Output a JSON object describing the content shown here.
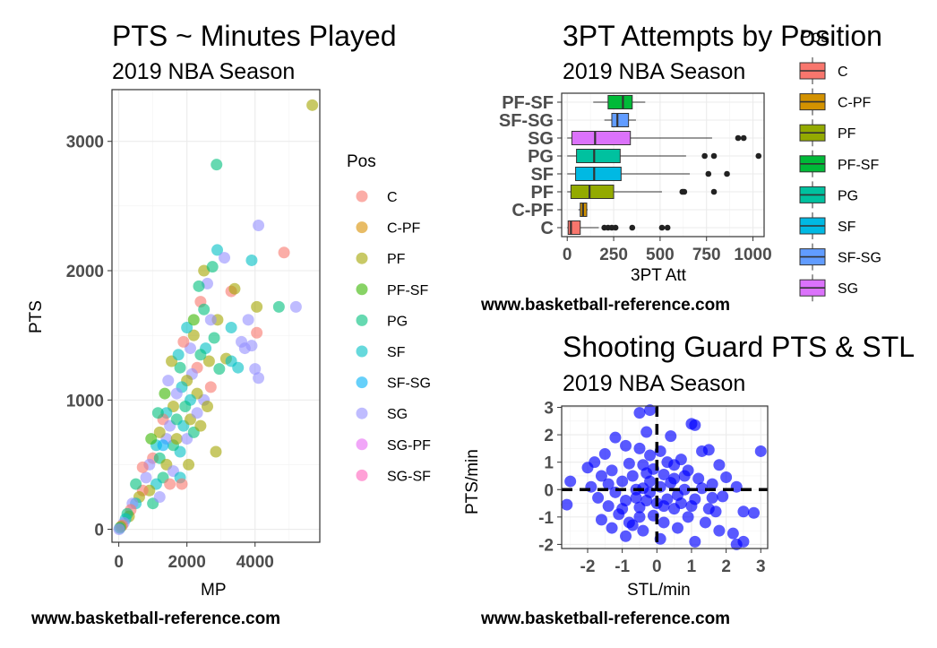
{
  "colors": {
    "pos": {
      "C": "#F8766D",
      "C-PF": "#D39200",
      "PF": "#93AA00",
      "PF-SF": "#00BA38",
      "PG": "#00C19F",
      "SF": "#00B9E3",
      "SF-SG": "#619CFF",
      "SG": "#DB72FB",
      "SG-PF": "#FF61C3",
      "SG-SF": "#FF61C3"
    },
    "scatter_pos": {
      "C": "#F8766D",
      "C-PF": "#D89000",
      "PF": "#A3A500",
      "PF-SF": "#39B600",
      "PG": "#00BF7D",
      "SF": "#00BFC4",
      "SF-SG": "#00B0F6",
      "SG": "#9590FF",
      "SG-PF": "#E76BF3",
      "SG-SF": "#FF62BC"
    },
    "guard_points": "#0000FF"
  },
  "plot1": {
    "title": "PTS ~ Minutes Played",
    "subtitle": "2019 NBA Season",
    "caption": "www.basketball-reference.com",
    "xlabel": "MP",
    "ylabel": "PTS",
    "legend_title": "Pos",
    "legend": [
      "C",
      "C-PF",
      "PF",
      "PF-SF",
      "PG",
      "SF",
      "SF-SG",
      "SG",
      "SG-PF",
      "SG-SF"
    ]
  },
  "plot2": {
    "title": "3PT Attempts by Position",
    "subtitle": "2019 NBA Season",
    "caption": "www.basketball-reference.com",
    "xlabel": "3PT Att",
    "legend_title": "Pos",
    "legend": [
      "C",
      "C-PF",
      "PF",
      "PF-SF",
      "PG",
      "SF",
      "SF-SG",
      "SG"
    ]
  },
  "plot3": {
    "title": "Shooting Guard PTS & STL",
    "subtitle": "2019 NBA Season",
    "caption": "www.basketball-reference.com",
    "xlabel": "STL/min",
    "ylabel": "PTS/min"
  },
  "chart_data": [
    {
      "type": "scatter",
      "title": "PTS ~ Minutes Played",
      "subtitle": "2019 NBA Season",
      "xlabel": "MP",
      "ylabel": "PTS",
      "xlim": [
        -200,
        5900
      ],
      "ylim": [
        -100,
        3400
      ],
      "xticks": [
        0,
        2000,
        4000
      ],
      "yticks": [
        0,
        1000,
        2000,
        3000
      ],
      "grid": true,
      "legend": "right",
      "legend_title": "Pos",
      "points": [
        {
          "x": 5680,
          "y": 3280,
          "pos": "PF"
        },
        {
          "x": 2870,
          "y": 2820,
          "pos": "PG"
        },
        {
          "x": 4100,
          "y": 2350,
          "pos": "SG"
        },
        {
          "x": 4850,
          "y": 2140,
          "pos": "C"
        },
        {
          "x": 2890,
          "y": 2160,
          "pos": "SF"
        },
        {
          "x": 3900,
          "y": 2080,
          "pos": "SF"
        },
        {
          "x": 2500,
          "y": 2000,
          "pos": "PF"
        },
        {
          "x": 2750,
          "y": 2030,
          "pos": "PG"
        },
        {
          "x": 3100,
          "y": 2100,
          "pos": "SG"
        },
        {
          "x": 3300,
          "y": 1840,
          "pos": "C"
        },
        {
          "x": 3400,
          "y": 1860,
          "pos": "PF"
        },
        {
          "x": 4700,
          "y": 1720,
          "pos": "PG"
        },
        {
          "x": 5200,
          "y": 1720,
          "pos": "SG"
        },
        {
          "x": 4050,
          "y": 1720,
          "pos": "PF"
        },
        {
          "x": 3800,
          "y": 1620,
          "pos": "SG"
        },
        {
          "x": 4050,
          "y": 1520,
          "pos": "C"
        },
        {
          "x": 2400,
          "y": 1760,
          "pos": "C"
        },
        {
          "x": 2600,
          "y": 1900,
          "pos": "SG"
        },
        {
          "x": 2350,
          "y": 1880,
          "pos": "PG"
        },
        {
          "x": 3600,
          "y": 1450,
          "pos": "SG"
        },
        {
          "x": 3300,
          "y": 1560,
          "pos": "SF"
        },
        {
          "x": 3900,
          "y": 1420,
          "pos": "SG"
        },
        {
          "x": 3700,
          "y": 1400,
          "pos": "SG"
        },
        {
          "x": 2900,
          "y": 1620,
          "pos": "PF"
        },
        {
          "x": 2800,
          "y": 1480,
          "pos": "PG"
        },
        {
          "x": 3150,
          "y": 1320,
          "pos": "PF"
        },
        {
          "x": 4000,
          "y": 1240,
          "pos": "SG"
        },
        {
          "x": 4100,
          "y": 1170,
          "pos": "SG"
        },
        {
          "x": 3500,
          "y": 1250,
          "pos": "SF"
        },
        {
          "x": 3300,
          "y": 1300,
          "pos": "SF"
        },
        {
          "x": 2950,
          "y": 1240,
          "pos": "PG"
        },
        {
          "x": 2200,
          "y": 1500,
          "pos": "PF"
        },
        {
          "x": 2100,
          "y": 1400,
          "pos": "SG"
        },
        {
          "x": 2000,
          "y": 1560,
          "pos": "SF"
        },
        {
          "x": 1900,
          "y": 1450,
          "pos": "C"
        },
        {
          "x": 2200,
          "y": 1620,
          "pos": "PF-SF"
        },
        {
          "x": 2500,
          "y": 1700,
          "pos": "PG"
        },
        {
          "x": 2700,
          "y": 1620,
          "pos": "SG"
        },
        {
          "x": 2650,
          "y": 1300,
          "pos": "PF"
        },
        {
          "x": 2550,
          "y": 1400,
          "pos": "SF"
        },
        {
          "x": 2400,
          "y": 1350,
          "pos": "PG"
        },
        {
          "x": 2300,
          "y": 1250,
          "pos": "C"
        },
        {
          "x": 2150,
          "y": 1200,
          "pos": "SG"
        },
        {
          "x": 2000,
          "y": 1150,
          "pos": "PF"
        },
        {
          "x": 1800,
          "y": 1250,
          "pos": "PG"
        },
        {
          "x": 1850,
          "y": 1100,
          "pos": "SF"
        },
        {
          "x": 2700,
          "y": 1100,
          "pos": "C"
        },
        {
          "x": 2500,
          "y": 1000,
          "pos": "SG"
        },
        {
          "x": 2300,
          "y": 1050,
          "pos": "PF"
        },
        {
          "x": 2100,
          "y": 1000,
          "pos": "SF"
        },
        {
          "x": 1950,
          "y": 950,
          "pos": "PG"
        },
        {
          "x": 1700,
          "y": 1050,
          "pos": "SG"
        },
        {
          "x": 1600,
          "y": 950,
          "pos": "PF"
        },
        {
          "x": 1400,
          "y": 900,
          "pos": "SF"
        },
        {
          "x": 1350,
          "y": 1050,
          "pos": "PF-SF"
        },
        {
          "x": 1300,
          "y": 850,
          "pos": "C"
        },
        {
          "x": 1500,
          "y": 800,
          "pos": "SG"
        },
        {
          "x": 1700,
          "y": 850,
          "pos": "PG"
        },
        {
          "x": 1900,
          "y": 800,
          "pos": "SF"
        },
        {
          "x": 2100,
          "y": 850,
          "pos": "PF"
        },
        {
          "x": 2300,
          "y": 900,
          "pos": "SG"
        },
        {
          "x": 2600,
          "y": 950,
          "pos": "PF"
        },
        {
          "x": 2850,
          "y": 600,
          "pos": "PF"
        },
        {
          "x": 2050,
          "y": 500,
          "pos": "PF"
        },
        {
          "x": 1800,
          "y": 600,
          "pos": "SF"
        },
        {
          "x": 1600,
          "y": 650,
          "pos": "PG"
        },
        {
          "x": 1400,
          "y": 700,
          "pos": "SG"
        },
        {
          "x": 1200,
          "y": 750,
          "pos": "PF"
        },
        {
          "x": 1100,
          "y": 650,
          "pos": "SF"
        },
        {
          "x": 1000,
          "y": 550,
          "pos": "C"
        },
        {
          "x": 900,
          "y": 500,
          "pos": "SG"
        },
        {
          "x": 1200,
          "y": 550,
          "pos": "PG"
        },
        {
          "x": 1400,
          "y": 500,
          "pos": "PF"
        },
        {
          "x": 1600,
          "y": 450,
          "pos": "SG"
        },
        {
          "x": 1800,
          "y": 400,
          "pos": "SF"
        },
        {
          "x": 1850,
          "y": 350,
          "pos": "C"
        },
        {
          "x": 1300,
          "y": 400,
          "pos": "PG"
        },
        {
          "x": 1100,
          "y": 350,
          "pos": "SF"
        },
        {
          "x": 900,
          "y": 300,
          "pos": "PF"
        },
        {
          "x": 800,
          "y": 400,
          "pos": "SG"
        },
        {
          "x": 700,
          "y": 300,
          "pos": "C"
        },
        {
          "x": 600,
          "y": 250,
          "pos": "PF"
        },
        {
          "x": 700,
          "y": 480,
          "pos": "C"
        },
        {
          "x": 500,
          "y": 350,
          "pos": "PG"
        },
        {
          "x": 500,
          "y": 200,
          "pos": "SF"
        },
        {
          "x": 400,
          "y": 200,
          "pos": "SG"
        },
        {
          "x": 350,
          "y": 150,
          "pos": "C"
        },
        {
          "x": 300,
          "y": 100,
          "pos": "PF"
        },
        {
          "x": 250,
          "y": 120,
          "pos": "PG"
        },
        {
          "x": 200,
          "y": 80,
          "pos": "SF"
        },
        {
          "x": 150,
          "y": 50,
          "pos": "SG"
        },
        {
          "x": 100,
          "y": 30,
          "pos": "C"
        },
        {
          "x": 60,
          "y": 20,
          "pos": "PF"
        },
        {
          "x": 30,
          "y": 10,
          "pos": "PG"
        },
        {
          "x": 10,
          "y": 0,
          "pos": "SG"
        },
        {
          "x": 1000,
          "y": 200,
          "pos": "PG"
        },
        {
          "x": 1200,
          "y": 250,
          "pos": "SG"
        },
        {
          "x": 1500,
          "y": 350,
          "pos": "C"
        },
        {
          "x": 950,
          "y": 700,
          "pos": "PF-SF"
        },
        {
          "x": 1150,
          "y": 900,
          "pos": "PG"
        },
        {
          "x": 1300,
          "y": 650,
          "pos": "SF-SG"
        },
        {
          "x": 1700,
          "y": 700,
          "pos": "PF"
        },
        {
          "x": 2000,
          "y": 700,
          "pos": "SG"
        },
        {
          "x": 2200,
          "y": 750,
          "pos": "PG"
        },
        {
          "x": 2400,
          "y": 800,
          "pos": "PF"
        },
        {
          "x": 1450,
          "y": 1150,
          "pos": "SG"
        },
        {
          "x": 1550,
          "y": 1300,
          "pos": "PF"
        },
        {
          "x": 1750,
          "y": 1350,
          "pos": "SF"
        }
      ]
    },
    {
      "type": "box",
      "title": "3PT Attempts by Position",
      "subtitle": "2019 NBA Season",
      "xlabel": "3PT Att",
      "xlim": [
        -30,
        1060
      ],
      "xticks": [
        0,
        250,
        500,
        750,
        1000
      ],
      "grid": true,
      "legend": "right",
      "legend_title": "Pos",
      "categories": [
        "C",
        "C-PF",
        "PF",
        "SF",
        "PG",
        "SG",
        "SF-SG",
        "PF-SF"
      ],
      "boxes": [
        {
          "pos": "C",
          "whisker_low": 0,
          "q1": 5,
          "median": 20,
          "q3": 70,
          "whisker_high": 170,
          "outliers": [
            200,
            220,
            240,
            260,
            350,
            510,
            540
          ]
        },
        {
          "pos": "C-PF",
          "whisker_low": 60,
          "q1": 70,
          "median": 85,
          "q3": 105,
          "whisker_high": 110,
          "outliers": []
        },
        {
          "pos": "PF",
          "whisker_low": 0,
          "q1": 20,
          "median": 120,
          "q3": 250,
          "whisker_high": 510,
          "outliers": [
            620,
            630,
            790
          ]
        },
        {
          "pos": "SF",
          "whisker_low": 0,
          "q1": 45,
          "median": 145,
          "q3": 290,
          "whisker_high": 660,
          "outliers": [
            760,
            860
          ]
        },
        {
          "pos": "PG",
          "whisker_low": 0,
          "q1": 50,
          "median": 145,
          "q3": 285,
          "whisker_high": 640,
          "outliers": [
            740,
            790,
            1030
          ]
        },
        {
          "pos": "SG",
          "whisker_low": 0,
          "q1": 25,
          "median": 150,
          "q3": 340,
          "whisker_high": 780,
          "outliers": [
            920,
            950
          ]
        },
        {
          "pos": "SF-SG",
          "whisker_low": 200,
          "q1": 240,
          "median": 270,
          "q3": 330,
          "whisker_high": 370,
          "outliers": []
        },
        {
          "pos": "PF-SF",
          "whisker_low": 140,
          "q1": 220,
          "median": 300,
          "q3": 350,
          "whisker_high": 420,
          "outliers": []
        }
      ]
    },
    {
      "type": "scatter",
      "title": "Shooting Guard PTS & STL",
      "subtitle": "2019 NBA Season",
      "xlabel": "STL/min",
      "ylabel": "PTS/min",
      "xlim": [
        -2.75,
        3.2
      ],
      "ylim": [
        -2.15,
        3.05
      ],
      "xticks": [
        -2,
        -1,
        0,
        1,
        2,
        3
      ],
      "yticks": [
        -2,
        -1,
        0,
        1,
        2,
        3
      ],
      "grid": true,
      "reference_lines": {
        "x": 0,
        "y": 0,
        "style": "dashed"
      },
      "points": [
        [
          -0.5,
          2.8
        ],
        [
          -0.2,
          2.9
        ],
        [
          1.0,
          2.4
        ],
        [
          1.1,
          2.35
        ],
        [
          -0.3,
          2.1
        ],
        [
          -1.2,
          1.9
        ],
        [
          0.4,
          1.95
        ],
        [
          -0.9,
          1.6
        ],
        [
          -0.5,
          1.5
        ],
        [
          0.1,
          1.4
        ],
        [
          1.3,
          1.4
        ],
        [
          1.5,
          1.45
        ],
        [
          3.0,
          1.4
        ],
        [
          -1.5,
          1.3
        ],
        [
          -0.2,
          1.25
        ],
        [
          0.7,
          1.1
        ],
        [
          -1.8,
          1.0
        ],
        [
          -0.8,
          0.95
        ],
        [
          0.5,
          0.9
        ],
        [
          1.8,
          0.9
        ],
        [
          -2.0,
          0.8
        ],
        [
          -1.3,
          0.7
        ],
        [
          -0.1,
          0.75
        ],
        [
          0.9,
          0.7
        ],
        [
          2.0,
          0.45
        ],
        [
          -1.6,
          0.5
        ],
        [
          -0.7,
          0.5
        ],
        [
          0.2,
          0.55
        ],
        [
          1.2,
          0.4
        ],
        [
          -2.5,
          0.3
        ],
        [
          -1.0,
          0.3
        ],
        [
          0.4,
          0.25
        ],
        [
          1.6,
          0.2
        ],
        [
          -1.9,
          0.1
        ],
        [
          -0.4,
          0.05
        ],
        [
          0.8,
          0.0
        ],
        [
          1.3,
          0.05
        ],
        [
          2.3,
          0.1
        ],
        [
          -1.2,
          -0.1
        ],
        [
          -0.2,
          -0.1
        ],
        [
          0.6,
          -0.2
        ],
        [
          1.9,
          -0.25
        ],
        [
          -1.7,
          -0.3
        ],
        [
          -0.6,
          -0.3
        ],
        [
          0.3,
          -0.35
        ],
        [
          1.1,
          -0.35
        ],
        [
          -2.6,
          -0.55
        ],
        [
          -1.4,
          -0.6
        ],
        [
          -0.5,
          -0.65
        ],
        [
          0.5,
          -0.7
        ],
        [
          1.5,
          -0.7
        ],
        [
          2.5,
          -0.8
        ],
        [
          2.8,
          -0.85
        ],
        [
          1.7,
          -0.8
        ],
        [
          -1.1,
          -0.9
        ],
        [
          -0.1,
          -0.95
        ],
        [
          0.9,
          -1.0
        ],
        [
          -1.6,
          -1.1
        ],
        [
          -0.8,
          -1.2
        ],
        [
          0.2,
          -1.2
        ],
        [
          1.4,
          -1.2
        ],
        [
          -1.3,
          -1.4
        ],
        [
          -0.4,
          -1.5
        ],
        [
          0.6,
          -1.4
        ],
        [
          1.8,
          -1.5
        ],
        [
          2.2,
          -1.6
        ],
        [
          -0.9,
          -1.7
        ],
        [
          0.1,
          -1.8
        ],
        [
          1.1,
          -1.9
        ],
        [
          2.3,
          -2.0
        ],
        [
          2.5,
          -1.9
        ],
        [
          -0.3,
          -0.4
        ],
        [
          0.0,
          -0.5
        ],
        [
          -0.6,
          0.0
        ],
        [
          0.2,
          -0.6
        ],
        [
          -0.9,
          -0.4
        ],
        [
          0.5,
          0.4
        ],
        [
          -0.3,
          0.6
        ],
        [
          0.7,
          -0.5
        ],
        [
          -1.0,
          -0.7
        ],
        [
          0.3,
          1.0
        ],
        [
          -0.5,
          -1.0
        ],
        [
          1.0,
          -0.6
        ],
        [
          -0.2,
          0.3
        ],
        [
          0.1,
          0.1
        ],
        [
          -1.4,
          0.2
        ],
        [
          0.8,
          0.5
        ],
        [
          -0.7,
          -1.3
        ],
        [
          1.6,
          -0.3
        ],
        [
          -0.4,
          0.9
        ]
      ]
    }
  ]
}
